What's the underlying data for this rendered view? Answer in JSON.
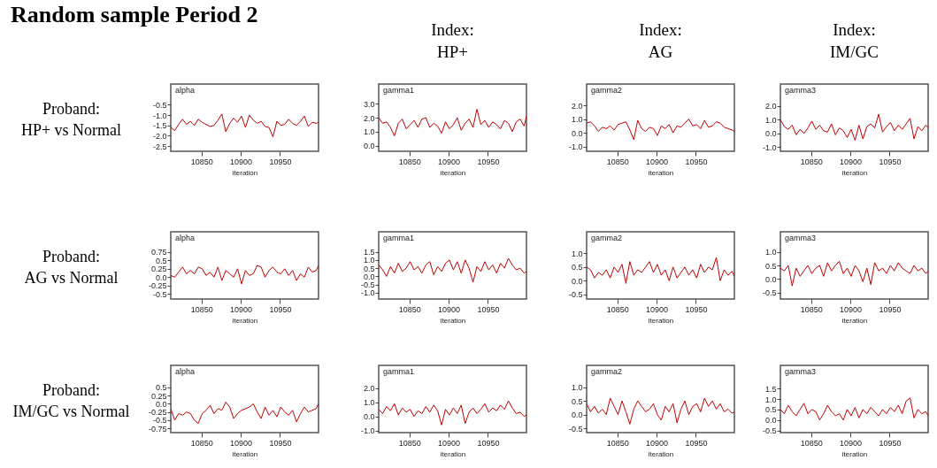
{
  "chart_data": [
    {
      "type": "other",
      "title": "Random sample Period 2"
    },
    {
      "type": "line",
      "title": "alpha",
      "ylabel": "Proband:\nHP+ vs Normal",
      "xlabel": "iteration",
      "x": [
        10811,
        10816,
        10821,
        10826,
        10831,
        10836,
        10841,
        10846,
        10851,
        10856,
        10861,
        10866,
        10871,
        10876,
        10881,
        10886,
        10891,
        10896,
        10901,
        10906,
        10911,
        10916,
        10921,
        10926,
        10931,
        10936,
        10941,
        10946,
        10951,
        10956,
        10961,
        10966,
        10971,
        10976,
        10981,
        10986,
        10991,
        10996,
        10999
      ],
      "xlim": [
        10811,
        10999
      ],
      "xticks": [
        10850,
        10900,
        10950
      ],
      "ylim": [
        -2.75,
        0.5
      ],
      "yticks": [
        -2.5,
        {
          "value": -2,
          "label": "-2.0"
        },
        -1.5,
        {
          "value": -1,
          "label": "-1.0"
        },
        -0.5
      ],
      "series": [
        {
          "color": "#c00000",
          "values": [
            -1.6,
            -1.75,
            -1.45,
            -1.2,
            -1.45,
            -1.3,
            -1.5,
            -1.2,
            -1.35,
            -1.45,
            -1.55,
            -1.5,
            -1.25,
            -0.95,
            -1.8,
            -1.4,
            -1.15,
            -1.35,
            -1.05,
            -1.6,
            -1.0,
            -1.25,
            -1.4,
            -1.3,
            -1.55,
            -1.6,
            -2.05,
            -1.3,
            -1.5,
            -1.45,
            -1.2,
            -1.4,
            -1.5,
            -1.3,
            -1.05,
            -1.55,
            -1.35,
            -1.4,
            -1.35
          ]
        }
      ]
    },
    {
      "type": "line",
      "title": "gamma1",
      "subtitle": "Index:\nHP+",
      "xlabel": "iteration",
      "x": [
        10811,
        10816,
        10821,
        10826,
        10831,
        10836,
        10841,
        10846,
        10851,
        10856,
        10861,
        10866,
        10871,
        10876,
        10881,
        10886,
        10891,
        10896,
        10901,
        10906,
        10911,
        10916,
        10921,
        10926,
        10931,
        10936,
        10941,
        10946,
        10951,
        10956,
        10961,
        10966,
        10971,
        10976,
        10981,
        10986,
        10991,
        10996,
        10999
      ],
      "xlim": [
        10811,
        10999
      ],
      "xticks": [
        10850,
        10900,
        10950
      ],
      "ylim": [
        -0.4,
        4.4
      ],
      "yticks": [
        {
          "value": 0,
          "label": "0.0"
        },
        {
          "value": 1,
          "label": "1.0"
        },
        {
          "value": 2,
          "label": "2.0"
        },
        {
          "value": 3,
          "label": "3.0"
        }
      ],
      "series": [
        {
          "color": "#c00000",
          "values": [
            2.0,
            1.6,
            1.7,
            1.3,
            0.7,
            1.6,
            1.9,
            1.2,
            1.5,
            1.8,
            1.3,
            1.9,
            2.0,
            1.3,
            1.6,
            1.4,
            0.9,
            1.7,
            1.2,
            1.5,
            2.0,
            1.1,
            1.6,
            1.9,
            1.3,
            2.6,
            1.5,
            1.8,
            1.3,
            1.7,
            1.5,
            1.2,
            1.8,
            1.6,
            1.0,
            1.7,
            1.9,
            1.4,
            2.1
          ]
        }
      ]
    },
    {
      "type": "line",
      "title": "gamma2",
      "subtitle": "Index:\nAG",
      "xlabel": "iteration",
      "x": [
        10811,
        10816,
        10821,
        10826,
        10831,
        10836,
        10841,
        10846,
        10851,
        10856,
        10861,
        10866,
        10871,
        10876,
        10881,
        10886,
        10891,
        10896,
        10901,
        10906,
        10911,
        10916,
        10921,
        10926,
        10931,
        10936,
        10941,
        10946,
        10951,
        10956,
        10961,
        10966,
        10971,
        10976,
        10981,
        10986,
        10991,
        10996,
        10999
      ],
      "xlim": [
        10811,
        10999
      ],
      "xticks": [
        10850,
        10900,
        10950
      ],
      "ylim": [
        -1.35,
        3.55
      ],
      "yticks": [
        {
          "value": -1,
          "label": "-1.0"
        },
        {
          "value": 0,
          "label": "0.0"
        },
        {
          "value": 1,
          "label": "1.0"
        },
        {
          "value": 2,
          "label": "2.0"
        }
      ],
      "series": [
        {
          "color": "#c00000",
          "values": [
            0.7,
            0.8,
            0.5,
            0.1,
            0.4,
            0.3,
            0.5,
            0.2,
            0.6,
            0.7,
            0.8,
            0.2,
            -0.5,
            0.9,
            0.3,
            0.1,
            0.4,
            0.3,
            -0.2,
            0.5,
            0.3,
            0.6,
            0.0,
            0.5,
            0.4,
            0.7,
            1.0,
            0.5,
            0.6,
            0.3,
            0.9,
            0.4,
            0.5,
            0.8,
            0.7,
            0.4,
            0.3,
            0.2,
            0.1
          ]
        }
      ]
    },
    {
      "type": "line",
      "title": "gamma3",
      "subtitle": "Index:\nIM/GC",
      "xlabel": "iteration",
      "x": [
        10811,
        10816,
        10821,
        10826,
        10831,
        10836,
        10841,
        10846,
        10851,
        10856,
        10861,
        10866,
        10871,
        10876,
        10881,
        10886,
        10891,
        10896,
        10901,
        10906,
        10911,
        10916,
        10921,
        10926,
        10931,
        10936,
        10941,
        10946,
        10951,
        10956,
        10961,
        10966,
        10971,
        10976,
        10981,
        10986,
        10991,
        10996,
        10999
      ],
      "xlim": [
        10811,
        10999
      ],
      "xticks": [
        10850,
        10900,
        10950
      ],
      "ylim": [
        -1.3,
        3.6
      ],
      "yticks": [
        {
          "value": -1,
          "label": "-1.0"
        },
        {
          "value": 0,
          "label": "0.0"
        },
        {
          "value": 1,
          "label": "1.0"
        },
        {
          "value": 2,
          "label": "2.0"
        }
      ],
      "series": [
        {
          "color": "#c00000",
          "values": [
            1.0,
            0.5,
            0.3,
            0.6,
            -0.1,
            0.3,
            0.0,
            0.4,
            0.9,
            0.3,
            0.6,
            0.2,
            0.1,
            0.7,
            -0.1,
            0.4,
            0.2,
            -0.3,
            0.3,
            -0.5,
            0.6,
            -0.4,
            0.5,
            0.7,
            0.4,
            1.4,
            0.1,
            0.5,
            0.8,
            0.2,
            0.6,
            0.3,
            0.7,
            1.1,
            -0.4,
            0.5,
            0.2,
            0.6,
            0.4
          ]
        }
      ]
    },
    {
      "type": "line",
      "title": "alpha",
      "ylabel": "Proband:\nAG vs Normal",
      "xlabel": "iteration",
      "x": [
        10811,
        10816,
        10821,
        10826,
        10831,
        10836,
        10841,
        10846,
        10851,
        10856,
        10861,
        10866,
        10871,
        10876,
        10881,
        10886,
        10891,
        10896,
        10901,
        10906,
        10911,
        10916,
        10921,
        10926,
        10931,
        10936,
        10941,
        10946,
        10951,
        10956,
        10961,
        10966,
        10971,
        10976,
        10981,
        10986,
        10991,
        10996,
        10999
      ],
      "xlim": [
        10811,
        10999
      ],
      "xticks": [
        10850,
        10900,
        10950
      ],
      "ylim": [
        -0.65,
        1.35
      ],
      "yticks": [
        -0.5,
        -0.25,
        {
          "value": 0,
          "label": "0.0"
        },
        0.25,
        0.5,
        0.75
      ],
      "series": [
        {
          "color": "#c00000",
          "values": [
            0.05,
            0.0,
            0.15,
            0.3,
            0.1,
            0.2,
            0.1,
            0.3,
            0.25,
            0.05,
            0.15,
            0.0,
            0.3,
            -0.1,
            0.2,
            0.1,
            0.0,
            0.25,
            -0.2,
            0.2,
            0.05,
            0.1,
            0.35,
            0.3,
            0.0,
            0.2,
            0.3,
            0.15,
            0.1,
            0.25,
            0.05,
            0.2,
            -0.1,
            0.1,
            0.0,
            0.3,
            0.15,
            0.2,
            0.35
          ]
        }
      ]
    },
    {
      "type": "line",
      "title": "gamma1",
      "xlabel": "iteration",
      "x": [
        10811,
        10816,
        10821,
        10826,
        10831,
        10836,
        10841,
        10846,
        10851,
        10856,
        10861,
        10866,
        10871,
        10876,
        10881,
        10886,
        10891,
        10896,
        10901,
        10906,
        10911,
        10916,
        10921,
        10926,
        10931,
        10936,
        10941,
        10946,
        10951,
        10956,
        10961,
        10966,
        10971,
        10976,
        10981,
        10986,
        10991,
        10996,
        10999
      ],
      "xlim": [
        10811,
        10999
      ],
      "xticks": [
        10850,
        10900,
        10950
      ],
      "ylim": [
        -1.38,
        2.72
      ],
      "yticks": [
        {
          "value": -1,
          "label": "-1.0"
        },
        -0.5,
        {
          "value": 0,
          "label": "0.0"
        },
        0.5,
        {
          "value": 1,
          "label": "1.0"
        },
        1.5
      ],
      "series": [
        {
          "color": "#c00000",
          "values": [
            0.7,
            0.4,
            0.0,
            0.6,
            0.2,
            0.8,
            0.3,
            0.5,
            0.9,
            0.4,
            0.6,
            0.2,
            0.7,
            0.9,
            0.1,
            0.6,
            0.3,
            0.8,
            1.0,
            0.4,
            0.9,
            0.2,
            1.0,
            0.5,
            -0.35,
            0.6,
            0.3,
            0.9,
            0.4,
            0.7,
            0.2,
            0.8,
            0.5,
            1.1,
            0.7,
            0.4,
            0.5,
            0.2,
            0.3
          ]
        }
      ]
    },
    {
      "type": "line",
      "title": "gamma2",
      "xlabel": "iteration",
      "x": [
        10811,
        10816,
        10821,
        10826,
        10831,
        10836,
        10841,
        10846,
        10851,
        10856,
        10861,
        10866,
        10871,
        10876,
        10881,
        10886,
        10891,
        10896,
        10901,
        10906,
        10911,
        10916,
        10921,
        10926,
        10931,
        10936,
        10941,
        10946,
        10951,
        10956,
        10961,
        10966,
        10971,
        10976,
        10981,
        10986,
        10991,
        10996,
        10999
      ],
      "xlim": [
        10811,
        10999
      ],
      "xticks": [
        10850,
        10900,
        10950
      ],
      "ylim": [
        -0.67,
        1.79
      ],
      "yticks": [
        -0.5,
        {
          "value": 0,
          "label": "0.0"
        },
        0.5,
        {
          "value": 1,
          "label": "1.0"
        }
      ],
      "series": [
        {
          "color": "#c00000",
          "values": [
            0.5,
            0.4,
            0.1,
            0.3,
            0.2,
            0.4,
            0.1,
            0.5,
            0.3,
            0.6,
            -0.1,
            0.7,
            0.2,
            0.4,
            0.3,
            0.5,
            0.7,
            0.3,
            0.6,
            0.2,
            0.4,
            0.0,
            0.5,
            0.1,
            0.3,
            0.5,
            0.2,
            0.4,
            0.1,
            0.6,
            0.3,
            0.5,
            0.4,
            0.85,
            0.0,
            0.4,
            0.2,
            0.35,
            0.15
          ]
        }
      ]
    },
    {
      "type": "line",
      "title": "gamma3",
      "xlabel": "iteration",
      "x": [
        10811,
        10816,
        10821,
        10826,
        10831,
        10836,
        10841,
        10846,
        10851,
        10856,
        10861,
        10866,
        10871,
        10876,
        10881,
        10886,
        10891,
        10896,
        10901,
        10906,
        10911,
        10916,
        10921,
        10926,
        10931,
        10936,
        10941,
        10946,
        10951,
        10956,
        10961,
        10966,
        10971,
        10976,
        10981,
        10986,
        10991,
        10996,
        10999
      ],
      "xlim": [
        10811,
        10999
      ],
      "xticks": [
        10850,
        10900,
        10950
      ],
      "ylim": [
        -0.73,
        1.73
      ],
      "yticks": [
        -0.5,
        {
          "value": 0,
          "label": "0.0"
        },
        0.5,
        {
          "value": 1,
          "label": "1.0"
        }
      ],
      "series": [
        {
          "color": "#c00000",
          "values": [
            0.4,
            0.3,
            0.5,
            -0.25,
            0.4,
            0.1,
            0.3,
            0.5,
            0.2,
            0.4,
            0.5,
            0.1,
            0.6,
            0.3,
            0.5,
            0.65,
            0.2,
            0.4,
            0.1,
            0.5,
            0.3,
            -0.1,
            0.4,
            -0.2,
            0.6,
            0.3,
            0.4,
            0.2,
            0.5,
            0.3,
            0.6,
            0.4,
            0.3,
            0.2,
            0.5,
            0.3,
            0.4,
            0.2,
            0.3
          ]
        }
      ]
    },
    {
      "type": "line",
      "title": "alpha",
      "ylabel": "Proband:\nIM/GC vs Normal",
      "xlabel": "iteration",
      "x": [
        10811,
        10816,
        10821,
        10826,
        10831,
        10836,
        10841,
        10846,
        10851,
        10856,
        10861,
        10866,
        10871,
        10876,
        10881,
        10886,
        10891,
        10896,
        10901,
        10906,
        10911,
        10916,
        10921,
        10926,
        10931,
        10936,
        10941,
        10946,
        10951,
        10956,
        10961,
        10966,
        10971,
        10976,
        10981,
        10986,
        10991,
        10996,
        10999
      ],
      "xlim": [
        10811,
        10999
      ],
      "xticks": [
        10850,
        10900,
        10950
      ],
      "ylim": [
        -0.88,
        1.17
      ],
      "yticks": [
        -0.75,
        -0.5,
        -0.25,
        {
          "value": 0,
          "label": "0.0"
        },
        0.25,
        0.5
      ],
      "series": [
        {
          "color": "#c00000",
          "values": [
            -0.15,
            -0.5,
            -0.3,
            -0.35,
            -0.25,
            -0.3,
            -0.5,
            -0.6,
            -0.3,
            -0.2,
            -0.05,
            -0.3,
            -0.15,
            -0.2,
            0.05,
            -0.1,
            -0.45,
            -0.3,
            -0.2,
            -0.15,
            -0.1,
            0.0,
            -0.25,
            -0.45,
            -0.1,
            -0.35,
            -0.2,
            -0.4,
            -0.1,
            -0.25,
            -0.35,
            -0.2,
            -0.55,
            -0.3,
            -0.1,
            -0.25,
            -0.2,
            -0.15,
            0.0
          ]
        }
      ]
    },
    {
      "type": "line",
      "title": "gamma1",
      "xlabel": "iteration",
      "x": [
        10811,
        10816,
        10821,
        10826,
        10831,
        10836,
        10841,
        10846,
        10851,
        10856,
        10861,
        10866,
        10871,
        10876,
        10881,
        10886,
        10891,
        10896,
        10901,
        10906,
        10911,
        10916,
        10921,
        10926,
        10931,
        10936,
        10941,
        10946,
        10951,
        10956,
        10961,
        10966,
        10971,
        10976,
        10981,
        10986,
        10991,
        10996,
        10999
      ],
      "xlim": [
        10811,
        10999
      ],
      "xticks": [
        10850,
        10900,
        10950
      ],
      "ylim": [
        -1.14,
        3.6
      ],
      "yticks": [
        {
          "value": -1,
          "label": "-1.0"
        },
        {
          "value": 0,
          "label": "0.0"
        },
        {
          "value": 1,
          "label": "1.0"
        },
        {
          "value": 2,
          "label": "2.0"
        }
      ],
      "series": [
        {
          "color": "#c00000",
          "values": [
            0.5,
            0.2,
            0.7,
            0.4,
            0.9,
            0.1,
            0.6,
            0.3,
            0.5,
            0.0,
            0.4,
            0.2,
            0.7,
            0.3,
            0.8,
            0.4,
            -0.6,
            0.5,
            0.1,
            0.6,
            0.2,
            0.8,
            -0.5,
            0.3,
            0.6,
            0.2,
            0.5,
            0.9,
            0.3,
            0.6,
            0.4,
            0.8,
            0.5,
            1.1,
            0.6,
            0.2,
            0.3,
            0.0,
            0.1
          ]
        }
      ]
    },
    {
      "type": "line",
      "title": "gamma2",
      "xlabel": "iteration",
      "x": [
        10811,
        10816,
        10821,
        10826,
        10831,
        10836,
        10841,
        10846,
        10851,
        10856,
        10861,
        10866,
        10871,
        10876,
        10881,
        10886,
        10891,
        10896,
        10901,
        10906,
        10911,
        10916,
        10921,
        10926,
        10931,
        10936,
        10941,
        10946,
        10951,
        10956,
        10961,
        10966,
        10971,
        10976,
        10981,
        10986,
        10991,
        10996,
        10999
      ],
      "xlim": [
        10811,
        10999
      ],
      "xticks": [
        10850,
        10900,
        10950
      ],
      "ylim": [
        -0.66,
        1.8
      ],
      "yticks": [
        -0.5,
        {
          "value": 0,
          "label": "0.0"
        },
        0.5,
        {
          "value": 1,
          "label": "1.0"
        }
      ],
      "series": [
        {
          "color": "#c00000",
          "values": [
            0.4,
            0.1,
            0.3,
            0.05,
            0.2,
            0.0,
            0.6,
            0.3,
            0.0,
            0.5,
            0.1,
            -0.35,
            0.2,
            0.5,
            0.3,
            0.1,
            0.2,
            0.4,
            0.0,
            -0.2,
            0.3,
            0.1,
            0.4,
            -0.3,
            0.2,
            0.5,
            0.0,
            0.3,
            0.4,
            0.1,
            0.6,
            0.3,
            0.5,
            0.2,
            0.4,
            0.1,
            0.2,
            0.05,
            0.1
          ]
        }
      ]
    },
    {
      "type": "line",
      "title": "gamma3",
      "xlabel": "iteration",
      "x": [
        10811,
        10816,
        10821,
        10826,
        10831,
        10836,
        10841,
        10846,
        10851,
        10856,
        10861,
        10866,
        10871,
        10876,
        10881,
        10886,
        10891,
        10896,
        10901,
        10906,
        10911,
        10916,
        10921,
        10926,
        10931,
        10936,
        10941,
        10946,
        10951,
        10956,
        10961,
        10966,
        10971,
        10976,
        10981,
        10986,
        10991,
        10996,
        10999
      ],
      "xlim": [
        10811,
        10999
      ],
      "xticks": [
        10850,
        10900,
        10950
      ],
      "ylim": [
        -0.6,
        2.6
      ],
      "yticks": [
        -0.5,
        {
          "value": 0,
          "label": "0.0"
        },
        0.5,
        {
          "value": 1,
          "label": "1.0"
        },
        1.5
      ],
      "series": [
        {
          "color": "#c00000",
          "values": [
            0.5,
            0.3,
            0.7,
            0.4,
            0.2,
            0.5,
            0.8,
            0.3,
            0.5,
            0.4,
            0.0,
            0.3,
            0.7,
            0.4,
            0.2,
            0.3,
            0.0,
            0.5,
            0.2,
            0.6,
            0.1,
            0.5,
            0.3,
            0.6,
            0.4,
            0.2,
            0.5,
            0.3,
            0.6,
            0.4,
            0.7,
            0.3,
            0.9,
            1.05,
            0.1,
            0.5,
            0.3,
            0.4,
            0.2
          ]
        }
      ]
    }
  ]
}
